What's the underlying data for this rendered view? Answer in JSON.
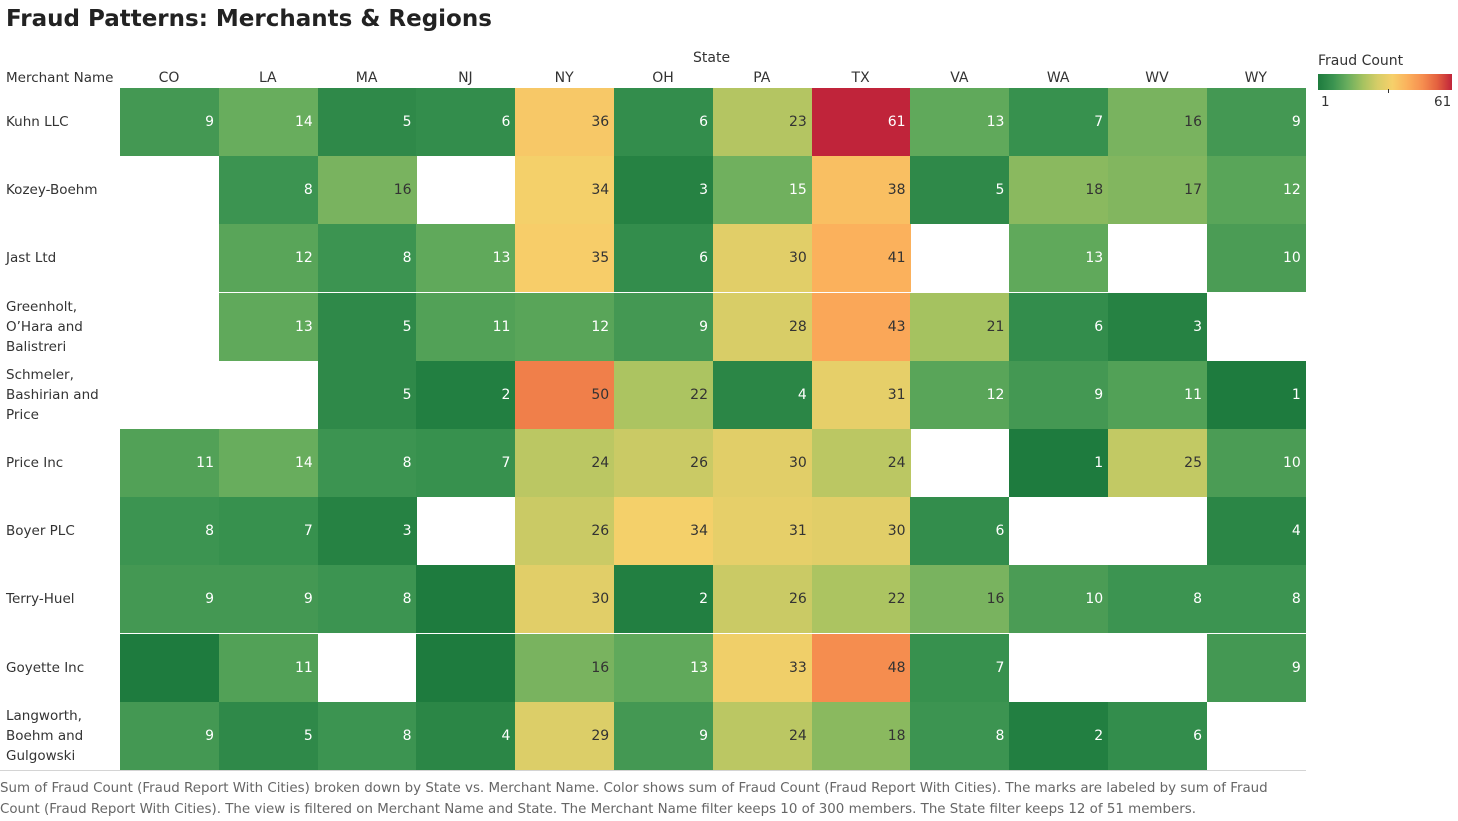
{
  "chart_data": {
    "type": "heatmap",
    "title": "Fraud Patterns: Merchants & Regions",
    "x_group_label": "State",
    "y_label": "Merchant Name",
    "columns": [
      "CO",
      "LA",
      "MA",
      "NJ",
      "NY",
      "OH",
      "PA",
      "TX",
      "VA",
      "WA",
      "WV",
      "WY"
    ],
    "rows": [
      "Kuhn LLC",
      "Kozey-Boehm",
      "Jast Ltd",
      "Greenholt, O’Hara and Balistreri",
      "Schmeler, Bashirian and Price",
      "Price Inc",
      "Boyer PLC",
      "Terry-Huel",
      "Goyette Inc",
      "Langworth, Boehm and Gulgowski"
    ],
    "values": [
      [
        9,
        14,
        5,
        6,
        36,
        6,
        23,
        61,
        13,
        7,
        16,
        9
      ],
      [
        null,
        8,
        16,
        null,
        34,
        3,
        15,
        38,
        5,
        18,
        17,
        12
      ],
      [
        null,
        12,
        8,
        13,
        35,
        6,
        30,
        41,
        null,
        13,
        null,
        10
      ],
      [
        null,
        13,
        5,
        11,
        12,
        9,
        28,
        43,
        21,
        6,
        3,
        null
      ],
      [
        null,
        null,
        5,
        2,
        50,
        22,
        4,
        31,
        12,
        9,
        11,
        1
      ],
      [
        11,
        14,
        8,
        7,
        24,
        26,
        30,
        24,
        null,
        1,
        25,
        10
      ],
      [
        8,
        7,
        3,
        null,
        26,
        34,
        31,
        30,
        6,
        null,
        null,
        4
      ],
      [
        9,
        9,
        8,
        1,
        30,
        2,
        26,
        22,
        16,
        10,
        8,
        8
      ],
      [
        1,
        11,
        null,
        1,
        16,
        13,
        33,
        48,
        7,
        null,
        null,
        9
      ],
      [
        9,
        5,
        8,
        4,
        29,
        9,
        24,
        18,
        8,
        2,
        6,
        null
      ]
    ],
    "labeled": [
      [
        true,
        true,
        true,
        true,
        true,
        true,
        true,
        true,
        true,
        true,
        true,
        true
      ],
      [
        false,
        true,
        true,
        false,
        true,
        true,
        true,
        true,
        true,
        true,
        true,
        true
      ],
      [
        false,
        true,
        true,
        true,
        true,
        true,
        true,
        true,
        false,
        true,
        false,
        true
      ],
      [
        false,
        true,
        true,
        true,
        true,
        true,
        true,
        true,
        true,
        true,
        true,
        false
      ],
      [
        false,
        false,
        true,
        true,
        true,
        true,
        true,
        true,
        true,
        true,
        true,
        true
      ],
      [
        true,
        true,
        true,
        true,
        true,
        true,
        true,
        true,
        false,
        true,
        true,
        true
      ],
      [
        true,
        true,
        true,
        false,
        true,
        true,
        true,
        true,
        true,
        false,
        false,
        true
      ],
      [
        true,
        true,
        true,
        false,
        true,
        true,
        true,
        true,
        true,
        true,
        true,
        true
      ],
      [
        false,
        true,
        false,
        false,
        true,
        true,
        true,
        true,
        true,
        false,
        false,
        true
      ],
      [
        true,
        true,
        true,
        true,
        true,
        true,
        true,
        true,
        true,
        true,
        true,
        false
      ]
    ],
    "color_legend": {
      "title": "Fraud Count",
      "min": 1,
      "max": 61,
      "palette": [
        "#1e7b3e",
        "#3a9350",
        "#6aae5e",
        "#a5c260",
        "#d6cd67",
        "#f6d06a",
        "#fbb15c",
        "#f68f50",
        "#e4613f",
        "#c0243a"
      ]
    },
    "caption": "Sum of Fraud Count (Fraud Report With Cities) broken down by State vs. Merchant Name.  Color shows sum of Fraud Count (Fraud Report With Cities).  The marks are labeled by sum of Fraud Count (Fraud Report With Cities). The view is filtered on Merchant Name and State. The Merchant Name filter keeps 10 of 300 members. The State filter keeps 12 of 51 members."
  }
}
